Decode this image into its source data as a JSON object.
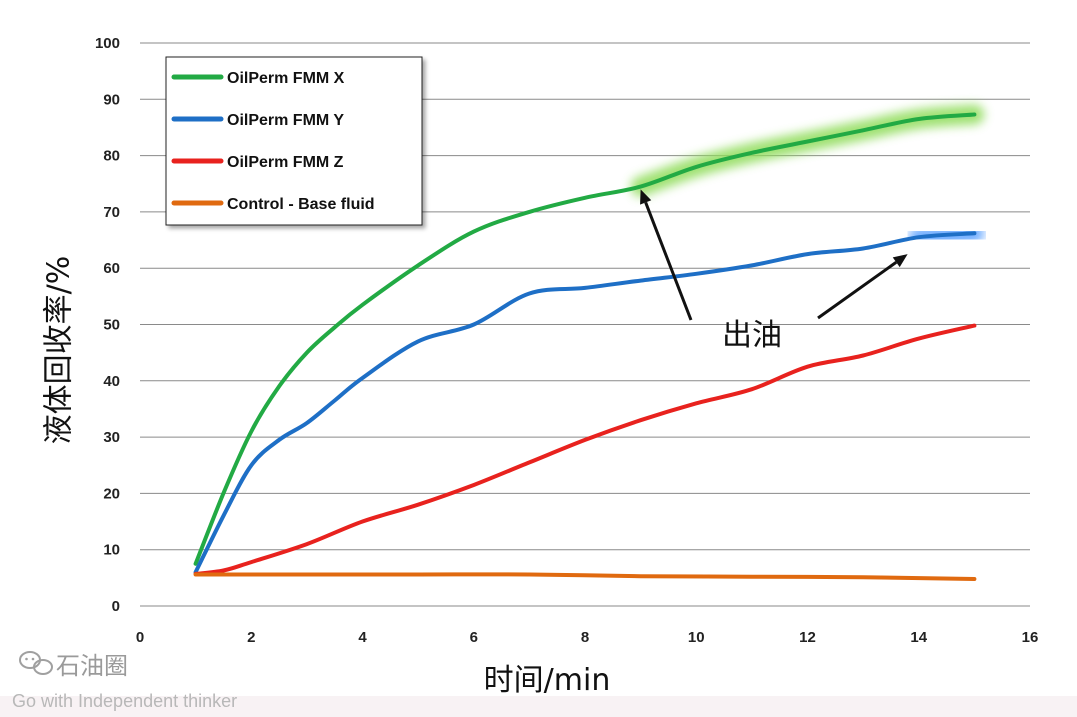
{
  "chart_data": {
    "type": "line",
    "xlabel": "时间/min",
    "ylabel": "液体回收率/%",
    "xlim": [
      0,
      16
    ],
    "ylim": [
      0,
      100
    ],
    "xticks": [
      0,
      2,
      4,
      6,
      8,
      10,
      12,
      14,
      16
    ],
    "yticks": [
      0,
      10,
      20,
      30,
      40,
      50,
      60,
      70,
      80,
      90,
      100
    ],
    "grid": "horizontal",
    "legend_position": "top-left",
    "series": [
      {
        "name": "OilPerm FMM X",
        "color": "#22aa44",
        "glow": "#8fdc5a",
        "x": [
          1,
          1.5,
          2,
          2.5,
          3,
          3.5,
          4,
          5,
          6,
          7,
          8,
          9,
          10,
          11,
          12,
          13,
          14,
          15
        ],
        "y": [
          7.5,
          20,
          31,
          39,
          45,
          49.5,
          53.5,
          60.5,
          66.5,
          70,
          72.5,
          74.5,
          78,
          80.5,
          82.5,
          84.5,
          86.5,
          87.3
        ]
      },
      {
        "name": "OilPerm FMM Y",
        "color": "#1e6fc6",
        "glow": "#5aa0ff",
        "x": [
          1,
          1.5,
          2,
          2.5,
          3,
          3.5,
          4,
          5,
          6,
          7,
          8,
          9,
          10,
          11,
          12,
          13,
          14,
          15
        ],
        "y": [
          6,
          16,
          25,
          29.5,
          32.5,
          36.5,
          40.5,
          47,
          50,
          55.5,
          56.5,
          57.8,
          59,
          60.5,
          62.5,
          63.5,
          65.5,
          66.2
        ]
      },
      {
        "name": "OilPerm FMM Z",
        "color": "#e8221e",
        "x": [
          1,
          1.5,
          2,
          3,
          4,
          5,
          6,
          7,
          8,
          9,
          10,
          11,
          12,
          13,
          14,
          15
        ],
        "y": [
          5.7,
          6.3,
          7.8,
          11,
          15,
          18,
          21.5,
          25.5,
          29.5,
          33,
          36,
          38.5,
          42.5,
          44.5,
          47.5,
          49.8
        ]
      },
      {
        "name": "Control - Base fluid",
        "color": "#e06a10",
        "x": [
          1,
          3,
          5,
          7,
          9,
          11,
          13,
          15
        ],
        "y": [
          5.6,
          5.6,
          5.6,
          5.6,
          5.3,
          5.2,
          5.1,
          4.8
        ]
      }
    ],
    "annotation": {
      "text": "出油",
      "arrow_targets": [
        {
          "series": "OilPerm FMM X",
          "x": 9,
          "y": 74
        },
        {
          "series": "OilPerm FMM Y",
          "x": 13.8,
          "y": 62.5
        }
      ]
    }
  },
  "watermark": {
    "logo_text": "石油圈",
    "tagline": "Go with Independent thinker"
  }
}
